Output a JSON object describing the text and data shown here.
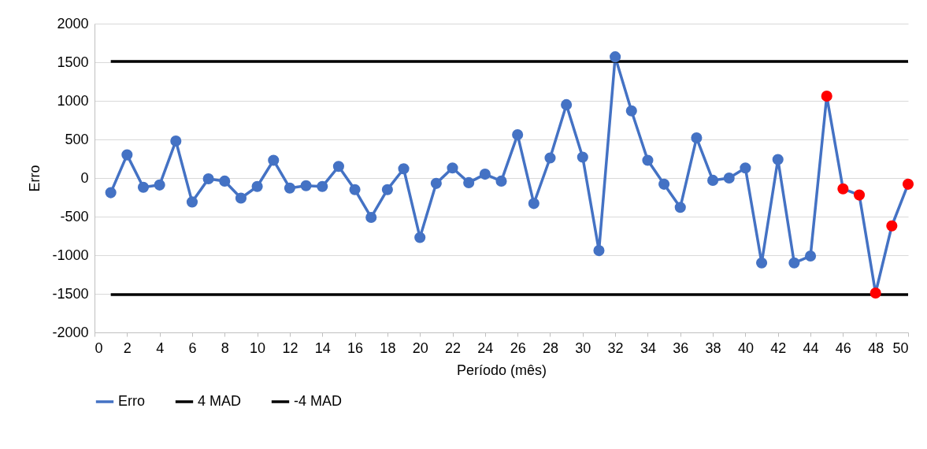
{
  "chart_data": {
    "type": "line",
    "xlabel": "Período (mês)",
    "ylabel": "Erro",
    "xlim": [
      0,
      50
    ],
    "xticks": [
      0,
      2,
      4,
      6,
      8,
      10,
      12,
      14,
      16,
      18,
      20,
      22,
      24,
      26,
      28,
      30,
      32,
      34,
      36,
      38,
      40,
      42,
      44,
      46,
      48,
      50
    ],
    "ylim": [
      -2000,
      2000
    ],
    "yticks": [
      -2000,
      -1500,
      -1000,
      -500,
      0,
      500,
      1000,
      1500,
      2000
    ],
    "grid": "y",
    "legend": "bottom",
    "x": [
      1,
      2,
      3,
      4,
      5,
      6,
      7,
      8,
      9,
      10,
      11,
      12,
      13,
      14,
      15,
      16,
      17,
      18,
      19,
      20,
      21,
      22,
      23,
      24,
      25,
      26,
      27,
      28,
      29,
      30,
      31,
      32,
      33,
      34,
      35,
      36,
      37,
      38,
      39,
      40,
      41,
      42,
      43,
      44,
      45,
      46,
      47,
      48,
      49,
      50
    ],
    "series": [
      {
        "name": "Erro",
        "marker": "circle",
        "color": "#4472c4",
        "values": [
          -190,
          300,
          -120,
          -90,
          480,
          -310,
          -10,
          -40,
          -260,
          -110,
          230,
          -130,
          -100,
          -110,
          150,
          -150,
          -510,
          -150,
          120,
          -770,
          -70,
          130,
          -60,
          50,
          -40,
          560,
          -330,
          260,
          950,
          270,
          -940,
          1570,
          870,
          230,
          -80,
          -380,
          520,
          -30,
          0,
          130,
          -1100,
          240,
          -1100,
          -1010,
          1060,
          -140,
          -220,
          -1490,
          -620,
          -80
        ],
        "colors": [
          "#4472c4",
          "#4472c4",
          "#4472c4",
          "#4472c4",
          "#4472c4",
          "#4472c4",
          "#4472c4",
          "#4472c4",
          "#4472c4",
          "#4472c4",
          "#4472c4",
          "#4472c4",
          "#4472c4",
          "#4472c4",
          "#4472c4",
          "#4472c4",
          "#4472c4",
          "#4472c4",
          "#4472c4",
          "#4472c4",
          "#4472c4",
          "#4472c4",
          "#4472c4",
          "#4472c4",
          "#4472c4",
          "#4472c4",
          "#4472c4",
          "#4472c4",
          "#4472c4",
          "#4472c4",
          "#4472c4",
          "#4472c4",
          "#4472c4",
          "#4472c4",
          "#4472c4",
          "#4472c4",
          "#4472c4",
          "#4472c4",
          "#4472c4",
          "#4472c4",
          "#4472c4",
          "#4472c4",
          "#4472c4",
          "#4472c4",
          "#ff0000",
          "#ff0000",
          "#ff0000",
          "#ff0000",
          "#ff0000",
          "#ff0000"
        ]
      },
      {
        "name": "4 MAD",
        "marker": "none",
        "color": "#000000",
        "values": [
          1510,
          1510,
          1510,
          1510,
          1510,
          1510,
          1510,
          1510,
          1510,
          1510,
          1510,
          1510,
          1510,
          1510,
          1510,
          1510,
          1510,
          1510,
          1510,
          1510,
          1510,
          1510,
          1510,
          1510,
          1510,
          1510,
          1510,
          1510,
          1510,
          1510,
          1510,
          1510,
          1510,
          1510,
          1510,
          1510,
          1510,
          1510,
          1510,
          1510,
          1510,
          1510,
          1510,
          1510,
          1510,
          1510,
          1510,
          1510,
          1510,
          1510
        ]
      },
      {
        "name": "-4 MAD",
        "marker": "none",
        "color": "#000000",
        "values": [
          -1510,
          -1510,
          -1510,
          -1510,
          -1510,
          -1510,
          -1510,
          -1510,
          -1510,
          -1510,
          -1510,
          -1510,
          -1510,
          -1510,
          -1510,
          -1510,
          -1510,
          -1510,
          -1510,
          -1510,
          -1510,
          -1510,
          -1510,
          -1510,
          -1510,
          -1510,
          -1510,
          -1510,
          -1510,
          -1510,
          -1510,
          -1510,
          -1510,
          -1510,
          -1510,
          -1510,
          -1510,
          -1510,
          -1510,
          -1510,
          -1510,
          -1510,
          -1510,
          -1510,
          -1510,
          -1510,
          -1510,
          -1510,
          -1510,
          -1510
        ]
      }
    ]
  }
}
